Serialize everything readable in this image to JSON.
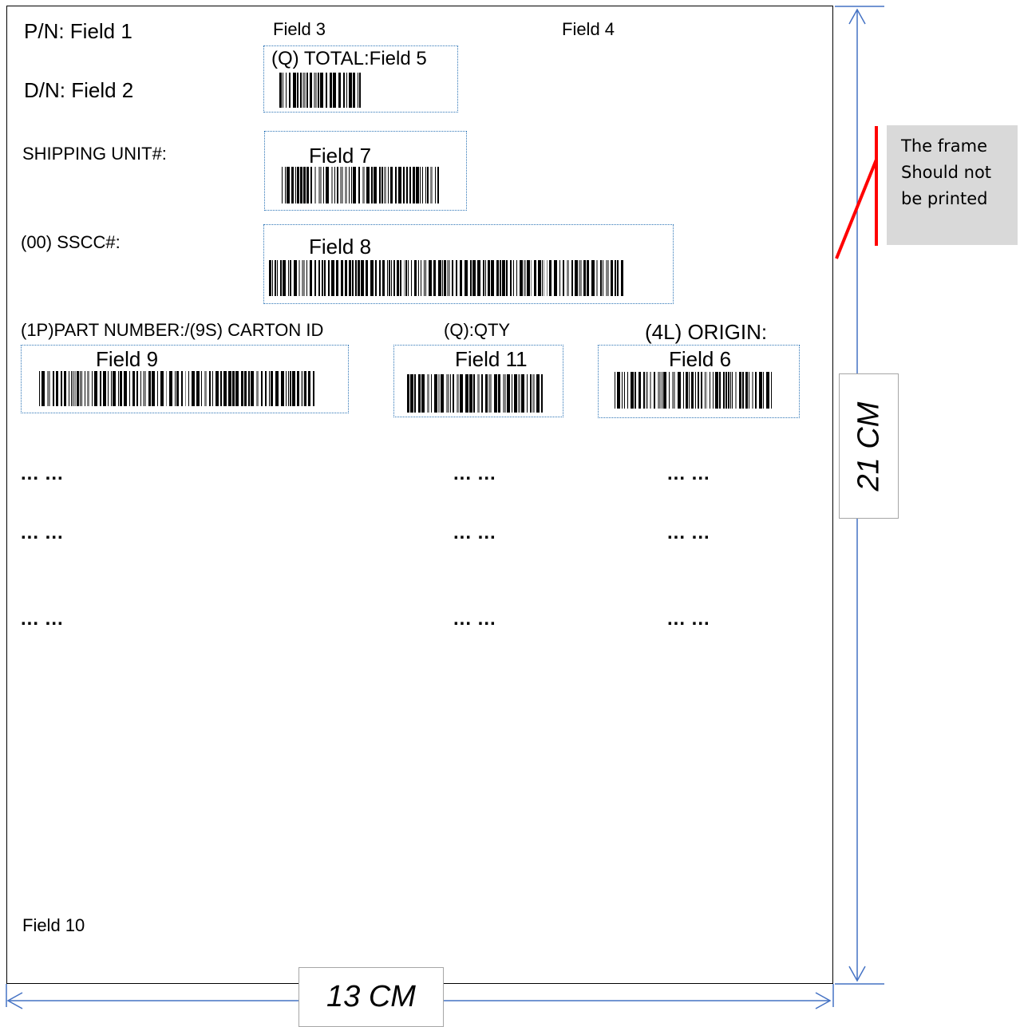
{
  "label": {
    "pn": "P/N: Field 1",
    "dn": "D/N: Field 2",
    "field3": "Field 3",
    "field4": "Field 4",
    "total": "(Q) TOTAL:Field 5",
    "shipping_unit": "SHIPPING UNIT#:",
    "field7": "Field 7",
    "sscc": "(00) SSCC#:",
    "field8": "Field 8",
    "part_carton": "(1P)PART NUMBER:/(9S) CARTON ID",
    "qty": "(Q):QTY",
    "origin": "(4L) ORIGIN:",
    "field9": "Field 9",
    "field11": "Field 11",
    "field6": "Field 6",
    "ellipsis": "... ...",
    "field10": "Field 10"
  },
  "dimensions": {
    "width": "13 CM",
    "height": "21 CM"
  },
  "note": {
    "lines": [
      "The frame",
      "Should not",
      "be printed"
    ],
    "pointer_color": "#ff0000"
  },
  "colors": {
    "dimension_line": "#4472c4",
    "field_border": "#2e75b6",
    "note_bg": "#d9d9d9"
  }
}
